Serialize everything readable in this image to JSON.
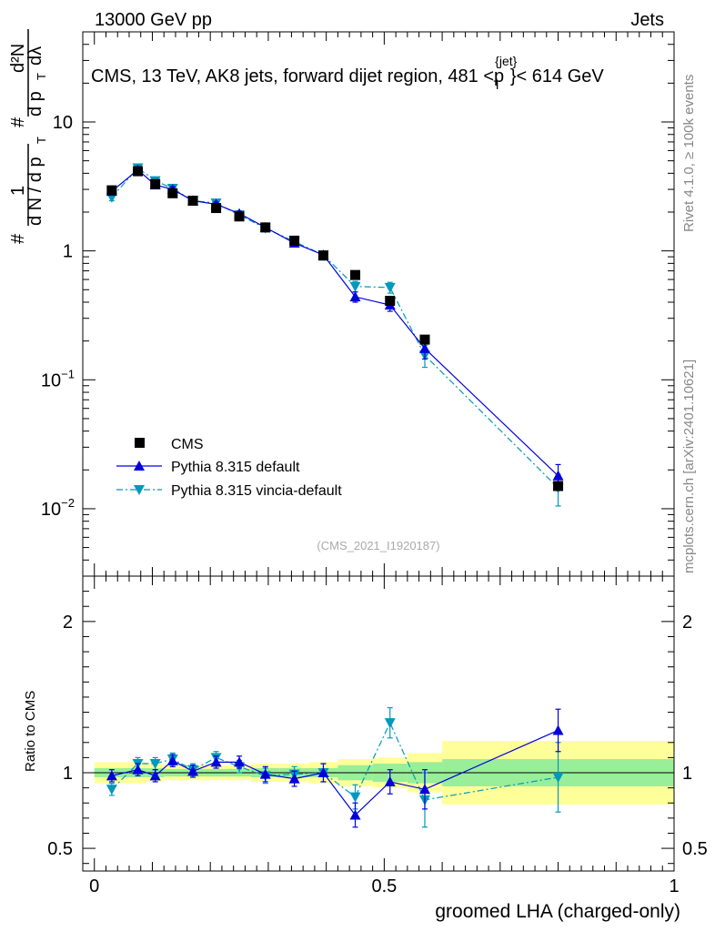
{
  "header": {
    "energy": "13000 GeV pp",
    "category": "Jets",
    "title": "CMS, 13 TeV, AK8 jets, forward dijet region, 481 <p",
    "title_sup": "{jet}",
    "title_sub": "T",
    "title_end": "}< 614 GeV"
  },
  "side": {
    "rivet": "Rivet 4.1.0, ≥ 100k events",
    "mcplots": "mcplots.cern.ch [arXiv:2401.10621]"
  },
  "analysis_id": "(CMS_2021_I1920187)",
  "ylabel_main": "1/N dN/dp_T d²N/dp_T dλ",
  "ylabel_parts": {
    "hash": "#",
    "one": "1",
    "dn": "d N / d p",
    "t": "T",
    "num": "d²N",
    "den": "d p",
    "lam": "dλ"
  },
  "ratio_ylabel": "Ratio to CMS",
  "xlabel": "groomed LHA (charged-only)",
  "chart_data": [
    {
      "type": "line",
      "name": "main",
      "yscale": "log",
      "ylim": [
        0.003,
        50
      ],
      "xlim": [
        -0.02,
        1.0
      ],
      "yticks": [
        {
          "v": 0.01,
          "base": "10",
          "exp": "−2"
        },
        {
          "v": 0.1,
          "base": "10",
          "exp": "−1"
        },
        {
          "v": 1,
          "base": "1",
          "exp": ""
        },
        {
          "v": 10,
          "base": "10",
          "exp": ""
        }
      ],
      "x": [
        0.03,
        0.075,
        0.105,
        0.135,
        0.17,
        0.21,
        0.25,
        0.295,
        0.345,
        0.395,
        0.45,
        0.51,
        0.57,
        0.8
      ],
      "series": [
        {
          "name": "CMS",
          "marker": "square",
          "color": "#000000",
          "values": [
            2.95,
            4.15,
            3.3,
            2.8,
            2.45,
            2.15,
            1.85,
            1.52,
            1.2,
            0.92,
            0.65,
            0.41,
            0.205,
            0.015
          ]
        },
        {
          "name": "Pythia 8.315 default",
          "marker": "triangle-up",
          "color": "#0000dd",
          "line": "solid",
          "values": [
            2.9,
            4.25,
            3.25,
            3.0,
            2.45,
            2.3,
            1.95,
            1.52,
            1.15,
            0.93,
            0.44,
            0.38,
            0.175,
            0.018
          ],
          "errors": [
            0.15,
            0.2,
            0.15,
            0.15,
            0.1,
            0.1,
            0.08,
            0.06,
            0.05,
            0.04,
            0.04,
            0.04,
            0.03,
            0.004
          ]
        },
        {
          "name": "Pythia 8.315 vincia-default",
          "marker": "triangle-down",
          "color": "#0099bb",
          "line": "dashdot",
          "values": [
            2.6,
            4.4,
            3.5,
            3.05,
            2.45,
            2.35,
            1.9,
            1.5,
            1.18,
            0.93,
            0.53,
            0.52,
            0.155,
            0.0145
          ],
          "errors": [
            0.15,
            0.2,
            0.15,
            0.15,
            0.1,
            0.1,
            0.08,
            0.06,
            0.05,
            0.04,
            0.05,
            0.05,
            0.03,
            0.004
          ]
        }
      ]
    },
    {
      "type": "line",
      "name": "ratio",
      "yscale": "linear",
      "ylim": [
        0.35,
        2.3
      ],
      "xlim": [
        -0.02,
        1.0
      ],
      "yticks": [
        {
          "v": 0.5,
          "base": "0.5",
          "exp": ""
        },
        {
          "v": 1,
          "base": "1",
          "exp": ""
        },
        {
          "v": 2,
          "base": "2",
          "exp": ""
        }
      ],
      "xticks": [
        {
          "v": 0,
          "label": "0"
        },
        {
          "v": 0.5,
          "label": "0.5"
        },
        {
          "v": 1,
          "label": "1"
        }
      ],
      "bins": [
        {
          "lo": 0.0,
          "hi": 0.045,
          "stat": 0.03,
          "tot": 0.07
        },
        {
          "lo": 0.045,
          "hi": 0.09,
          "stat": 0.03,
          "tot": 0.07
        },
        {
          "lo": 0.09,
          "hi": 0.12,
          "stat": 0.03,
          "tot": 0.06
        },
        {
          "lo": 0.12,
          "hi": 0.15,
          "stat": 0.025,
          "tot": 0.05
        },
        {
          "lo": 0.15,
          "hi": 0.19,
          "stat": 0.025,
          "tot": 0.05
        },
        {
          "lo": 0.19,
          "hi": 0.23,
          "stat": 0.025,
          "tot": 0.05
        },
        {
          "lo": 0.23,
          "hi": 0.27,
          "stat": 0.025,
          "tot": 0.05
        },
        {
          "lo": 0.27,
          "hi": 0.32,
          "stat": 0.03,
          "tot": 0.06
        },
        {
          "lo": 0.32,
          "hi": 0.37,
          "stat": 0.03,
          "tot": 0.06
        },
        {
          "lo": 0.37,
          "hi": 0.42,
          "stat": 0.03,
          "tot": 0.07
        },
        {
          "lo": 0.42,
          "hi": 0.48,
          "stat": 0.05,
          "tot": 0.09
        },
        {
          "lo": 0.48,
          "hi": 0.54,
          "stat": 0.06,
          "tot": 0.1
        },
        {
          "lo": 0.54,
          "hi": 0.6,
          "stat": 0.07,
          "tot": 0.13
        },
        {
          "lo": 0.6,
          "hi": 1.0,
          "stat": 0.09,
          "tot": 0.21
        }
      ],
      "x": [
        0.03,
        0.075,
        0.105,
        0.135,
        0.17,
        0.21,
        0.25,
        0.295,
        0.345,
        0.395,
        0.45,
        0.51,
        0.57,
        0.8
      ],
      "series": [
        {
          "name": "Pythia 8.315 default",
          "marker": "triangle-up",
          "color": "#0000dd",
          "line": "solid",
          "values": [
            0.98,
            1.02,
            0.98,
            1.08,
            1.01,
            1.07,
            1.07,
            0.99,
            0.96,
            1.0,
            0.72,
            0.94,
            0.89,
            1.28
          ],
          "errors": [
            0.04,
            0.04,
            0.04,
            0.04,
            0.04,
            0.04,
            0.04,
            0.05,
            0.05,
            0.06,
            0.08,
            0.08,
            0.13,
            0.14
          ]
        },
        {
          "name": "Pythia 8.315 vincia-default",
          "marker": "triangle-down",
          "color": "#0099bb",
          "line": "dashdot",
          "values": [
            0.89,
            1.06,
            1.06,
            1.09,
            1.02,
            1.1,
            1.04,
            0.98,
            0.99,
            1.0,
            0.84,
            1.33,
            0.82,
            0.97
          ],
          "errors": [
            0.04,
            0.04,
            0.04,
            0.04,
            0.04,
            0.04,
            0.04,
            0.05,
            0.05,
            0.06,
            0.08,
            0.1,
            0.18,
            0.23
          ]
        }
      ]
    }
  ],
  "colors": {
    "stat_band": "#99ee99",
    "total_band": "#ffff99"
  }
}
